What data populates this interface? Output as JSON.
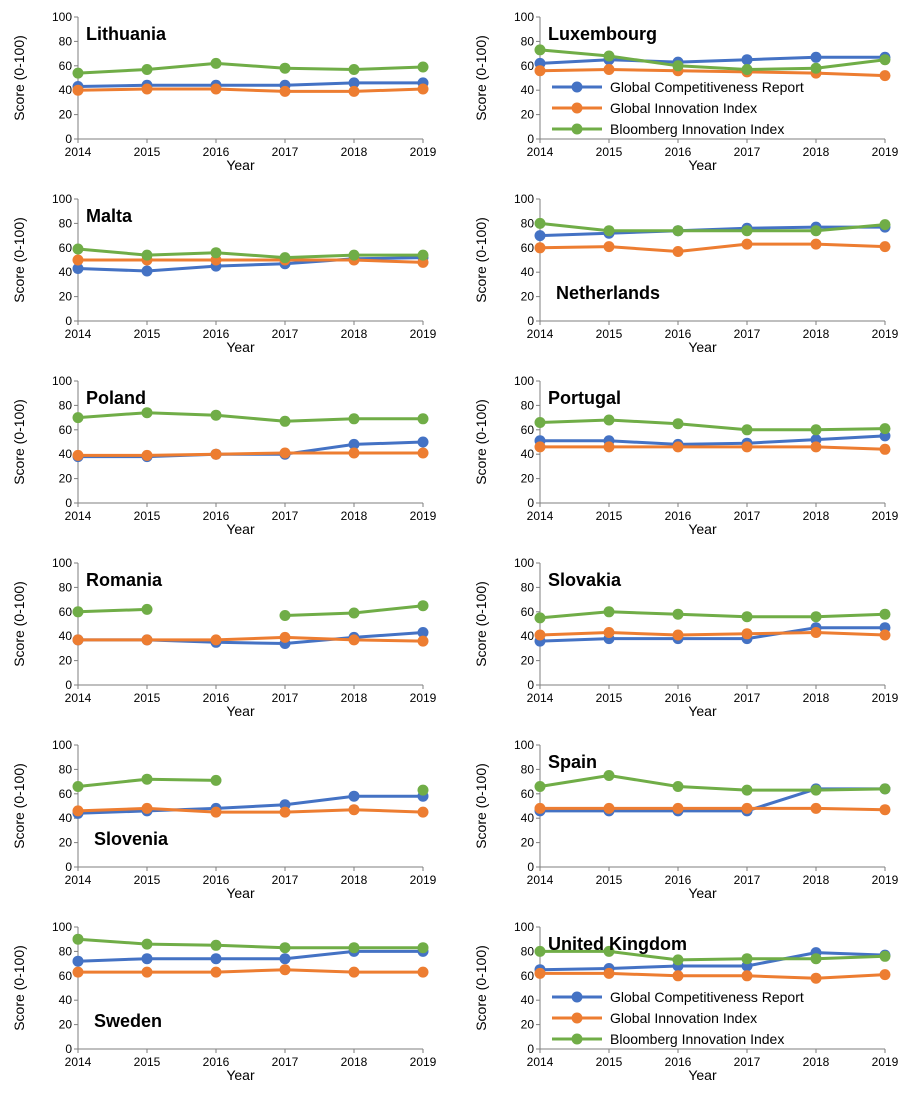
{
  "chart_data": {
    "type": "line",
    "ylabel": "Score (0-100)",
    "xlabel": "Year",
    "x": [
      2014,
      2015,
      2016,
      2017,
      2018,
      2019
    ],
    "ylim": [
      0,
      100
    ],
    "yticks": [
      0,
      20,
      40,
      60,
      80,
      100
    ],
    "colors": {
      "gcr": "#4472C4",
      "gii": "#ED7D31",
      "bii": "#70AD47"
    },
    "legend_labels": [
      "Global Competitiveness Report",
      "Global Innovation Index",
      "Bloomberg Innovation Index"
    ],
    "panels": [
      {
        "title": "Lithuania",
        "title_pos": "top-left",
        "legend": false,
        "series": [
          [
            43,
            44,
            44,
            44,
            46,
            46
          ],
          [
            40,
            41,
            41,
            39,
            39,
            41
          ],
          [
            54,
            57,
            62,
            58,
            57,
            59
          ]
        ]
      },
      {
        "title": "Luxembourg",
        "title_pos": "top-left",
        "legend": true,
        "series": [
          [
            62,
            65,
            63,
            65,
            67,
            67
          ],
          [
            56,
            57,
            56,
            55,
            54,
            52
          ],
          [
            73,
            68,
            60,
            57,
            58,
            65
          ]
        ]
      },
      {
        "title": "Malta",
        "title_pos": "top-left",
        "legend": false,
        "series": [
          [
            43,
            41,
            45,
            47,
            51,
            52
          ],
          [
            50,
            50,
            50,
            50,
            50,
            48
          ],
          [
            59,
            54,
            56,
            52,
            54,
            54
          ]
        ]
      },
      {
        "title": "Netherlands",
        "title_pos": "bottom-left",
        "legend": false,
        "series": [
          [
            70,
            72,
            74,
            76,
            77,
            77
          ],
          [
            60,
            61,
            57,
            63,
            63,
            61
          ],
          [
            80,
            74,
            74,
            74,
            74,
            79
          ]
        ]
      },
      {
        "title": "Poland",
        "title_pos": "top-left",
        "legend": false,
        "series": [
          [
            38,
            38,
            40,
            40,
            48,
            50
          ],
          [
            39,
            39,
            40,
            41,
            41,
            41
          ],
          [
            70,
            74,
            72,
            67,
            69,
            69
          ]
        ]
      },
      {
        "title": "Portugal",
        "title_pos": "top-left",
        "legend": false,
        "series": [
          [
            51,
            51,
            48,
            49,
            52,
            55
          ],
          [
            46,
            46,
            46,
            46,
            46,
            44
          ],
          [
            66,
            68,
            65,
            60,
            60,
            61
          ]
        ]
      },
      {
        "title": "Romania",
        "title_pos": "top-left",
        "legend": false,
        "series": [
          [
            37,
            37,
            35,
            34,
            39,
            43
          ],
          [
            37,
            37,
            37,
            39,
            37,
            36
          ],
          [
            60,
            62,
            null,
            57,
            59,
            65
          ]
        ]
      },
      {
        "title": "Slovakia",
        "title_pos": "top-left",
        "legend": false,
        "series": [
          [
            36,
            38,
            38,
            38,
            47,
            47
          ],
          [
            41,
            43,
            41,
            42,
            43,
            41
          ],
          [
            55,
            60,
            58,
            56,
            56,
            58
          ]
        ]
      },
      {
        "title": "Slovenia",
        "title_pos": "bottom-left",
        "legend": false,
        "series": [
          [
            44,
            46,
            48,
            51,
            58,
            58
          ],
          [
            46,
            48,
            45,
            45,
            47,
            45
          ],
          [
            66,
            72,
            71,
            null,
            null,
            63
          ]
        ]
      },
      {
        "title": "Spain",
        "title_pos": "top-left",
        "legend": false,
        "series": [
          [
            46,
            46,
            46,
            46,
            64,
            64
          ],
          [
            48,
            48,
            48,
            48,
            48,
            47
          ],
          [
            66,
            75,
            66,
            63,
            63,
            64
          ]
        ]
      },
      {
        "title": "Sweden",
        "title_pos": "bottom-left",
        "legend": false,
        "series": [
          [
            72,
            74,
            74,
            74,
            80,
            80
          ],
          [
            63,
            63,
            63,
            65,
            63,
            63
          ],
          [
            90,
            86,
            85,
            83,
            83,
            83
          ]
        ]
      },
      {
        "title": "United Kingdom",
        "title_pos": "top-left",
        "legend": true,
        "series": [
          [
            65,
            66,
            68,
            68,
            79,
            77
          ],
          [
            62,
            62,
            60,
            60,
            58,
            61
          ],
          [
            80,
            80,
            73,
            74,
            74,
            76
          ]
        ]
      }
    ]
  }
}
